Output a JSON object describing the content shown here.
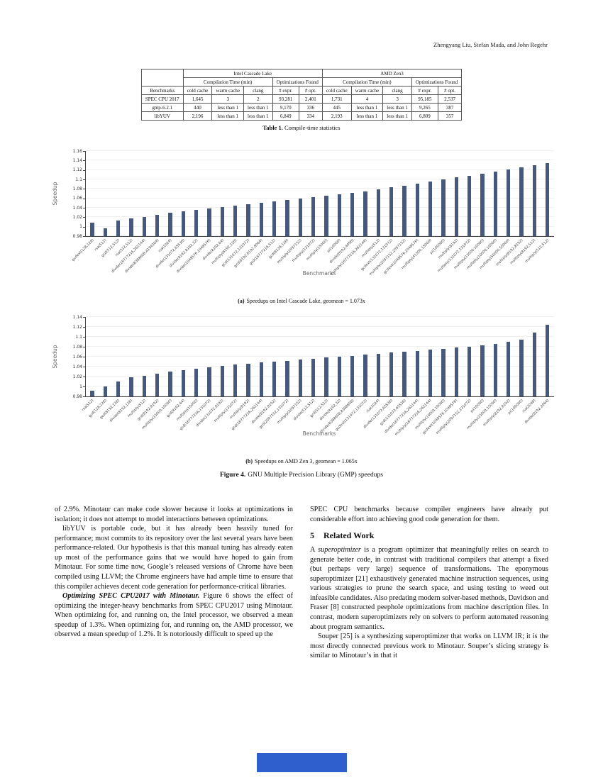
{
  "header": {
    "authors": "Zhengyang Liu, Stefan Mada, and John Regehr"
  },
  "table": {
    "caption_label": "Table 1.",
    "caption_text": "Compile-time statistics",
    "corner": "Benchmarks",
    "groups": [
      "Intel Cascade Lake",
      "AMD Zen3"
    ],
    "subgroups": [
      "Compilation Time (min)",
      "Optimizations Found",
      "Compilation Time (min)",
      "Optimizations Found"
    ],
    "columns": [
      "cold cache",
      "warm cache",
      "clang",
      "# expr.",
      "# opt.",
      "cold cache",
      "warm cache",
      "clang",
      "# expr.",
      "# opt."
    ],
    "rows": [
      [
        "SPEC CPU 2017",
        "1,645",
        "3",
        "2",
        "93,281",
        "2,401",
        "1,731",
        "4",
        "3",
        "95,185",
        "2,537"
      ],
      [
        "gmp-6.2.1",
        "440",
        "less than 1",
        "less than 1",
        "9,170",
        "336",
        "445",
        "less than 1",
        "less than 1",
        "9,265",
        "387"
      ],
      [
        "libYUV",
        "2,196",
        "less than 1",
        "less than 1",
        "6,849",
        "334",
        "2,193",
        "less than 1",
        "less than 1",
        "6,809",
        "357"
      ]
    ]
  },
  "chart_data": [
    {
      "type": "bar",
      "title": "Speedups on Intel Cascade Lake",
      "geomean": "1.073x",
      "xlabel": "Benchmarks",
      "ylabel": "Speedup",
      "ylim": [
        0.98,
        1.16
      ],
      "yticks": [
        0.98,
        1,
        1.02,
        1.04,
        1.06,
        1.08,
        1.1,
        1.12,
        1.14,
        1.16
      ],
      "bar_color": "#46597c",
      "categories": [
        "gcdext(128,128)",
        "rsa(512)",
        "gcd(512,512)",
        "rsa(512,512)",
        "divide(16777216,262144)",
        "divide(8388608,4194304)",
        "rsa(1024)",
        "divide(131072,65536)",
        "divide(8192,8192,32)",
        "divide(1048576,1048576)",
        "divide(8192,64)",
        "multiply(8192,128)",
        "gcd(131072,131072)",
        "gcd(8192,8192,8064)",
        "gcd(16777216,512)",
        "gcd(8128,128)",
        "multiply(2097152)",
        "multiply(131072)",
        "multiply(15000)",
        "pi(10000)",
        "divide(8192,4096)",
        "multiply(16777216,262144)",
        "multiply(512)",
        "gcdext(131072,131072)",
        "multiply(2097152,2097152)",
        "gcdext(1048576,1048576)",
        "multiply(41500,15000)",
        "pi(100000)",
        "multiply(8192)",
        "multiply(131072,131072)",
        "multiply(15000,10000)",
        "multiply(10000,10000)",
        "multiply(50000,50000)",
        "multiply(8192,8192)",
        "multiply(8192,512)",
        "multiply(512,512)"
      ],
      "values": [
        1.008,
        0.996,
        1.013,
        1.018,
        1.021,
        1.025,
        1.029,
        1.032,
        1.035,
        1.038,
        1.041,
        1.044,
        1.047,
        1.05,
        1.053,
        1.056,
        1.059,
        1.062,
        1.065,
        1.068,
        1.071,
        1.075,
        1.079,
        1.083,
        1.087,
        1.091,
        1.095,
        1.1,
        1.104,
        1.108,
        1.112,
        1.116,
        1.121,
        1.126,
        1.13,
        1.134
      ]
    },
    {
      "type": "bar",
      "title": "Speedups on AMD Zen 3",
      "geomean": "1.065x",
      "xlabel": "Benchmarks",
      "ylabel": "Speedup",
      "ylim": [
        0.98,
        1.14
      ],
      "yticks": [
        0.98,
        1,
        1.02,
        1.04,
        1.06,
        1.08,
        1.1,
        1.12,
        1.14
      ],
      "bar_color": "#46597c",
      "categories": [
        "rsa(512)",
        "gcd(128,128)",
        "gcd(8192,128)",
        "divide(8192,128)",
        "multiply(512)",
        "gcd(8192,8192)",
        "multiply(15000,10000)",
        "gcd(8192,64)",
        "multiply(15000)",
        "gcd(16777216,131072)",
        "divide(131072,8192)",
        "multiply(131072)",
        "multiply(8192)",
        "gcd(16777216,262144)",
        "divide(8192,8192)",
        "gcd(2097152,131072)",
        "multiply(2097152)",
        "divide(512,512)",
        "gcd(512,512)",
        "divide(8192,32)",
        "divide(8388608,8388608)",
        "gcdext(131072,131072)",
        "rsa(1024)",
        "divide(131072,65536)",
        "gcd(131072,65536)",
        "divide(16777216,262144)",
        "multiply(16777216,262144)",
        "multiply(10000,10000)",
        "gcdext(1048576,1048576)",
        "multiply(2097152,131072)",
        "pi(10000)",
        "multiply(15000,15000)",
        "multiply(8192,8192)",
        "pi(100000)",
        "rsa(2048)",
        "divide(8192,2064)"
      ],
      "values": [
        0.992,
        1.0,
        1.01,
        1.018,
        1.022,
        1.026,
        1.03,
        1.033,
        1.036,
        1.039,
        1.042,
        1.044,
        1.046,
        1.048,
        1.05,
        1.052,
        1.054,
        1.056,
        1.058,
        1.06,
        1.062,
        1.064,
        1.066,
        1.068,
        1.07,
        1.072,
        1.074,
        1.076,
        1.078,
        1.08,
        1.083,
        1.086,
        1.09,
        1.095,
        1.108,
        1.125
      ]
    }
  ],
  "figure": {
    "subcaption_a_label": "(a)",
    "subcaption_a_text": "Speedups on Intel Cascade Lake, geomean = 1.073x",
    "subcaption_b_label": "(b)",
    "subcaption_b_text": "Speedups on AMD Zen 3, geomean = 1.065x",
    "caption_label": "Figure 4.",
    "caption_text": "GNU Multiple Precision Library (GMP) speedups"
  },
  "body": {
    "left": [
      {
        "runs": [
          {
            "t": "of 2.9%. Minotaur can make code slower because it looks at optimizations in isolation; it does not attempt to model interactions between optimizations."
          }
        ]
      },
      {
        "indent": true,
        "runs": [
          {
            "t": "libYUV is portable code, but it has already been heavily tuned for performance; most commits to its repository over the last several years have been performance-related. Our hypothesis is that this manual tuning has already eaten up most of the performance gains that we would have hoped to gain from Minotaur. For some time now, Google’s released versions of Chrome have been compiled using LLVM; the Chrome engineers have had ample time to ensure that this compiler achieves decent code generation for performance-critical libraries."
          }
        ]
      },
      {
        "indent": true,
        "runs": [
          {
            "t": "Optimizing SPEC CPU2017 with Minotaur.",
            "s": "bi"
          },
          {
            "t": " Figure 6 shows the effect of optimizing the integer-heavy benchmarks from SPEC CPU2017 using Minotaur. When optimizing for, and running on, the Intel processor, we observed a mean speedup of 1.3%. When optimizing for, and running on, the AMD processor, we observed a mean speedup of 1.2%. It is notoriously difficult to speed up the"
          }
        ]
      }
    ],
    "right": [
      {
        "runs": [
          {
            "t": "SPEC CPU benchmarks because compiler engineers have already put considerable effort into achieving good code generation for them."
          }
        ]
      },
      {
        "heading": true,
        "number": "5",
        "text": "Related Work"
      },
      {
        "runs": [
          {
            "t": "A "
          },
          {
            "t": "superoptimizer",
            "s": "i"
          },
          {
            "t": " is a program optimizer that meaningfully relies on search to generate better code, in contrast with traditional compilers that attempt a fixed (but perhaps very large) sequence of transformations. The eponymous superoptimizer [21] exhaustively generated machine instruction sequences, using various strategies to prune the search space, and using testing to weed out infeasible candidates. Also predating modern solver-based methods, Davidson and Fraser [8] constructed peephole optimizations from machine description files. In contrast, modern superoptimizers rely on solvers to perform automated reasoning about program semantics."
          }
        ]
      },
      {
        "indent": true,
        "runs": [
          {
            "t": "Souper [25] is a synthesizing superoptimizer that works on LLVM IR; it is the most directly connected previous work to Minotaur. Souper’s slicing strategy is similar to Minotaur’s in that it"
          }
        ]
      }
    ]
  },
  "colors": {
    "bar": "#46597c",
    "accent_box": "#2e5fcc"
  }
}
